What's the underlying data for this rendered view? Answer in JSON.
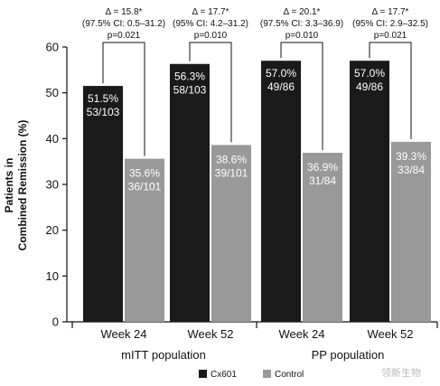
{
  "chart_data": {
    "type": "bar",
    "ylabel_line1": "Patients in",
    "ylabel_line2": "Combined Remission (%)",
    "ylim": [
      0,
      60
    ],
    "yticks": [
      0,
      10,
      20,
      30,
      40,
      50,
      60
    ],
    "groups": [
      "mITT population",
      "PP population"
    ],
    "categories": [
      "Week 24",
      "Week 52",
      "Week 24",
      "Week 52"
    ],
    "series": [
      {
        "name": "Cx601",
        "color": "#1a1a1a",
        "values": [
          51.5,
          56.3,
          57.0,
          57.0
        ],
        "labels": [
          "51.5%",
          "56.3%",
          "57.0%",
          "57.0%"
        ],
        "counts": [
          "53/103",
          "58/103",
          "49/86",
          "49/86"
        ]
      },
      {
        "name": "Control",
        "color": "#999999",
        "values": [
          35.6,
          38.6,
          36.9,
          39.3
        ],
        "labels": [
          "35.6%",
          "38.6%",
          "36.9%",
          "39.3%"
        ],
        "counts": [
          "36/101",
          "39/101",
          "31/84",
          "33/84"
        ]
      }
    ],
    "annotations": [
      {
        "delta": "Δ = 15.8*",
        "ci": "(97.5% CI: 0.5–31.2)",
        "p": "p=0.021"
      },
      {
        "delta": "Δ = 17.7*",
        "ci": "(95% CI: 4.2–31.2)",
        "p": "p=0.010"
      },
      {
        "delta": "Δ = 20.1*",
        "ci": "(97.5% CI: 3.3–36.9)",
        "p": "p=0.010"
      },
      {
        "delta": "Δ = 17.7*",
        "ci": "(95% CI: 2.9–32.5)",
        "p": "p=0.021"
      }
    ],
    "legend": [
      "Cx601",
      "Control"
    ],
    "legend_position": "bottom-center",
    "grid": false
  },
  "watermark": "领新生物"
}
